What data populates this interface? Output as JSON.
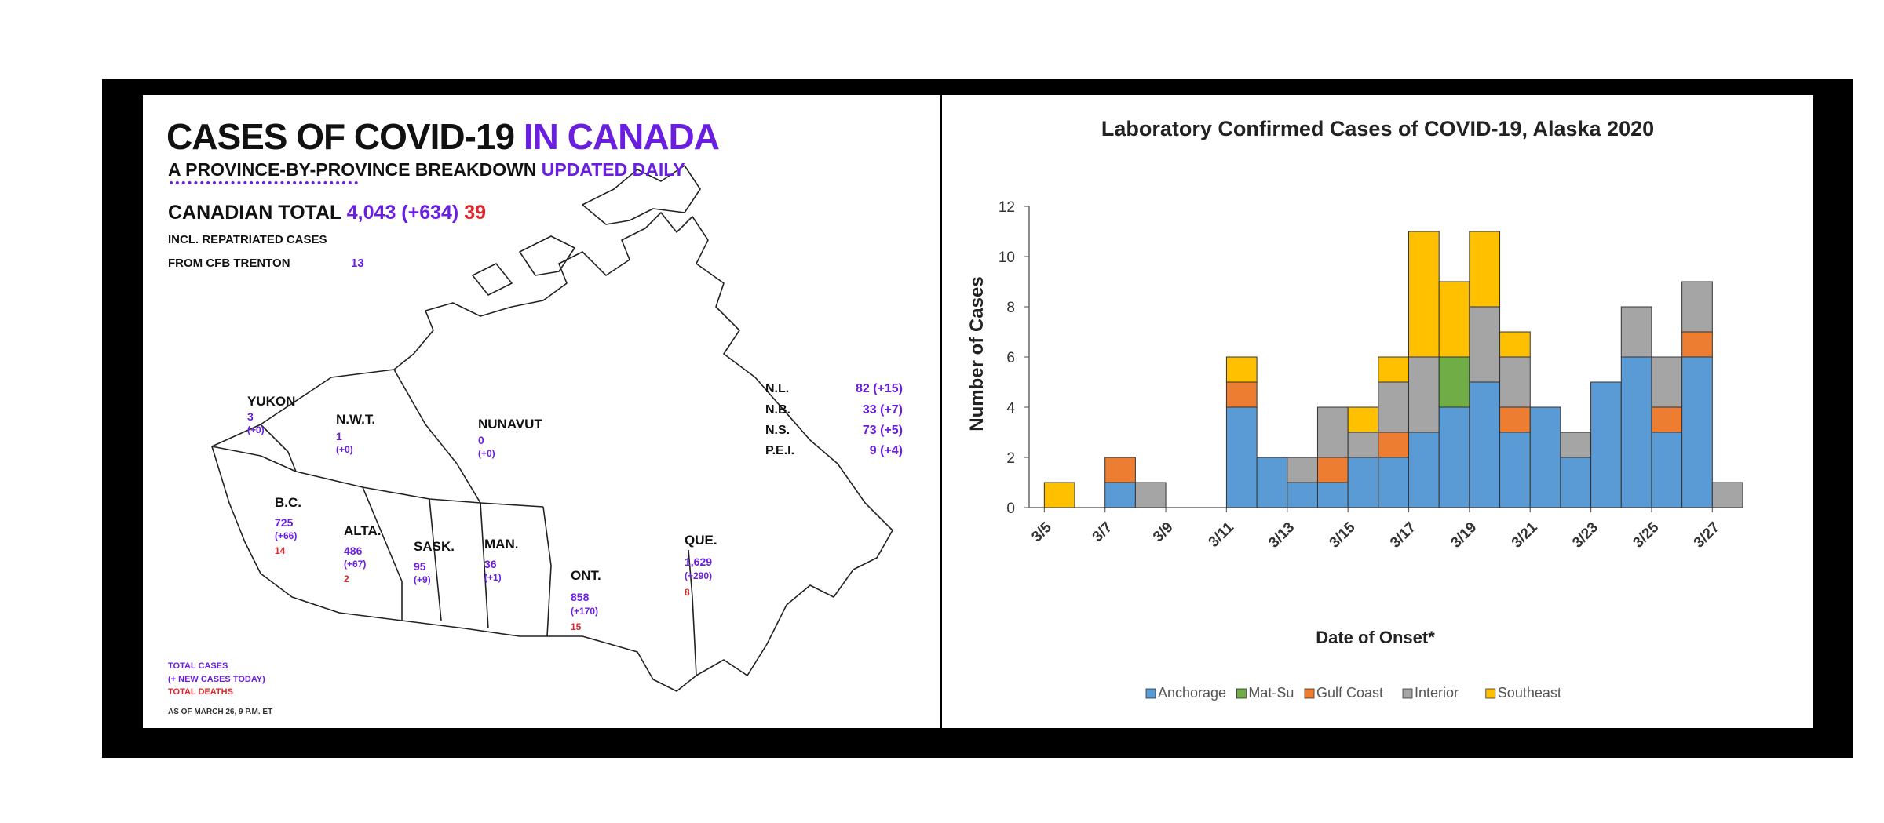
{
  "canada": {
    "title_part1": "CASES OF COVID-19 ",
    "title_part2": "IN CANADA",
    "subtitle_part1": "A PROVINCE-BY-PROVINCE BREAKDOWN ",
    "subtitle_part2": "UPDATED DAILY",
    "total_label": "CANADIAN TOTAL ",
    "total_value": "4,043 (+634) ",
    "total_deaths": "39",
    "repatriated_line1": "INCL. REPATRIATED CASES",
    "repatriated_line2": "FROM CFB TRENTON",
    "repatriated_value": "13",
    "provinces": [
      {
        "name": "YUKON",
        "total": "3",
        "new": "(+0)",
        "deaths": ""
      },
      {
        "name": "N.W.T.",
        "total": "1",
        "new": "(+0)",
        "deaths": ""
      },
      {
        "name": "NUNAVUT",
        "total": "0",
        "new": "(+0)",
        "deaths": ""
      },
      {
        "name": "B.C.",
        "total": "725",
        "new": "(+66)",
        "deaths": "14"
      },
      {
        "name": "ALTA.",
        "total": "486",
        "new": "(+67)",
        "deaths": "2"
      },
      {
        "name": "SASK.",
        "total": "95",
        "new": "(+9)",
        "deaths": ""
      },
      {
        "name": "MAN.",
        "total": "36",
        "new": "(+1)",
        "deaths": ""
      },
      {
        "name": "ONT.",
        "total": "858",
        "new": "(+170)",
        "deaths": "15"
      },
      {
        "name": "QUE.",
        "total": "1,629",
        "new": "(+290)",
        "deaths": "8"
      }
    ],
    "atlantic": [
      {
        "name": "N.L.",
        "value": "82 (+15)"
      },
      {
        "name": "N.B.",
        "value": "33 (+7)"
      },
      {
        "name": "N.S.",
        "value": "73 (+5)"
      },
      {
        "name": "P.E.I.",
        "value": "9 (+4)"
      }
    ],
    "legend": {
      "total_cases": "TOTAL CASES",
      "new_cases": "(+ NEW CASES TODAY)",
      "total_deaths": "TOTAL DEATHS"
    },
    "as_of": "AS OF MARCH 26, 9 P.M. ET",
    "colors": {
      "accent": "#6a1fe0",
      "deaths": "#e0262a",
      "text": "#111111"
    }
  },
  "chart_data": {
    "type": "bar",
    "stacked": true,
    "title": "Laboratory Confirmed Cases of COVID-19, Alaska 2020",
    "xlabel": "Date of Onset*",
    "ylabel": "Number of Cases",
    "ylim": [
      0,
      12
    ],
    "yticks": [
      "0",
      "2",
      "4",
      "6",
      "8",
      "10",
      "12"
    ],
    "grid": false,
    "legend_position": "bottom",
    "x_tick_labels": [
      "3/5",
      "3/7",
      "3/9",
      "3/11",
      "3/13",
      "3/15",
      "3/17",
      "3/19",
      "3/21",
      "3/23",
      "3/25",
      "3/27"
    ],
    "categories": [
      "3/5",
      "3/6",
      "3/7",
      "3/8",
      "3/9",
      "3/10",
      "3/11",
      "3/12",
      "3/13",
      "3/14",
      "3/15",
      "3/16",
      "3/17",
      "3/18",
      "3/19",
      "3/20",
      "3/21",
      "3/22",
      "3/23",
      "3/24",
      "3/25",
      "3/26",
      "3/27"
    ],
    "series": [
      {
        "name": "Anchorage",
        "color": "#5b9bd5",
        "values": [
          0,
          0,
          1,
          0,
          0,
          0,
          4,
          2,
          1,
          1,
          2,
          2,
          3,
          4,
          5,
          3,
          4,
          2,
          5,
          6,
          3,
          6,
          0
        ]
      },
      {
        "name": "Mat-Su",
        "color": "#70ad47",
        "values": [
          0,
          0,
          0,
          0,
          0,
          0,
          0,
          0,
          0,
          0,
          0,
          0,
          0,
          2,
          0,
          0,
          0,
          0,
          0,
          0,
          0,
          0,
          0
        ]
      },
      {
        "name": "Gulf Coast",
        "color": "#ed7d31",
        "values": [
          0,
          0,
          1,
          0,
          0,
          0,
          1,
          0,
          0,
          1,
          0,
          1,
          0,
          0,
          0,
          1,
          0,
          0,
          0,
          0,
          1,
          1,
          0
        ]
      },
      {
        "name": "Interior",
        "color": "#a5a5a5",
        "values": [
          0,
          0,
          0,
          1,
          0,
          0,
          0,
          0,
          1,
          2,
          1,
          2,
          3,
          0,
          3,
          2,
          0,
          1,
          0,
          2,
          2,
          2,
          1
        ]
      },
      {
        "name": "Southeast",
        "color": "#ffc000",
        "values": [
          1,
          0,
          0,
          0,
          0,
          0,
          1,
          0,
          0,
          0,
          1,
          1,
          5,
          3,
          3,
          1,
          0,
          0,
          0,
          0,
          0,
          0,
          0
        ]
      }
    ]
  }
}
